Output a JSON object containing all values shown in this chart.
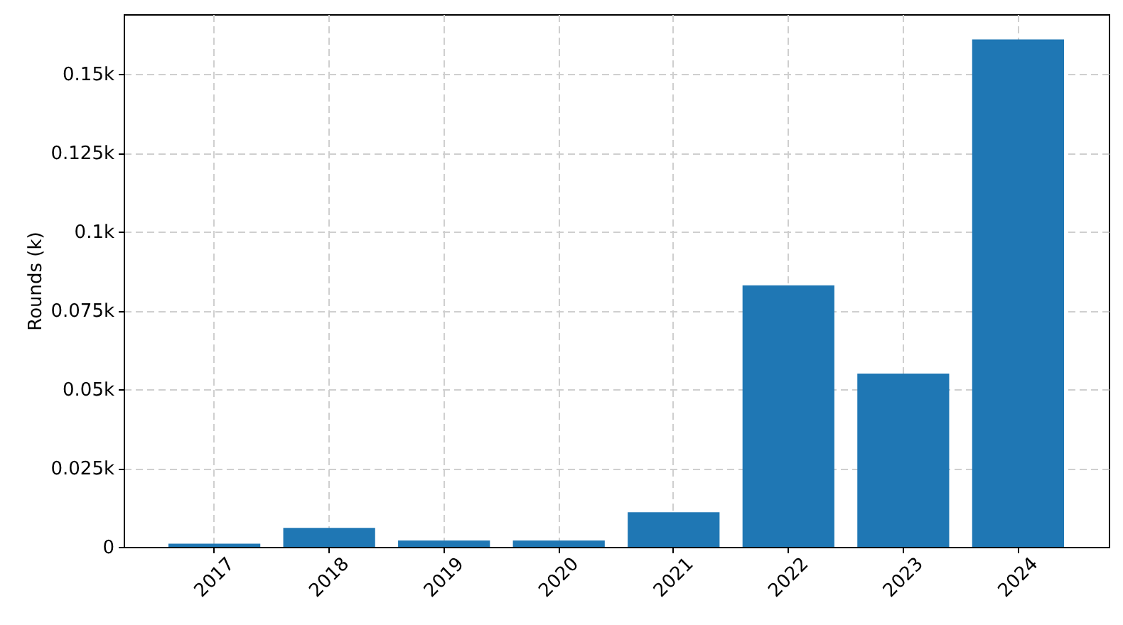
{
  "chart_data": {
    "type": "bar",
    "ylabel": "Rounds (k)",
    "categories": [
      "2017",
      "2018",
      "2019",
      "2020",
      "2021",
      "2022",
      "2023",
      "2024"
    ],
    "values": [
      0.001,
      0.006,
      0.002,
      0.002,
      0.011,
      0.083,
      0.055,
      0.161
    ],
    "color": "#1f77b4",
    "ylim": [
      0,
      0.169
    ],
    "yticks": [
      0,
      {
        "value": 0.025,
        "label": "0.025k"
      },
      {
        "value": 0.05,
        "label": "0.05k"
      },
      {
        "value": 0.075,
        "label": "0.075k"
      },
      {
        "value": 0.1,
        "label": "0.1k"
      },
      {
        "value": 0.125,
        "label": "0.125k"
      },
      {
        "value": 0.15,
        "label": "0.15k"
      }
    ],
    "grid": true
  }
}
